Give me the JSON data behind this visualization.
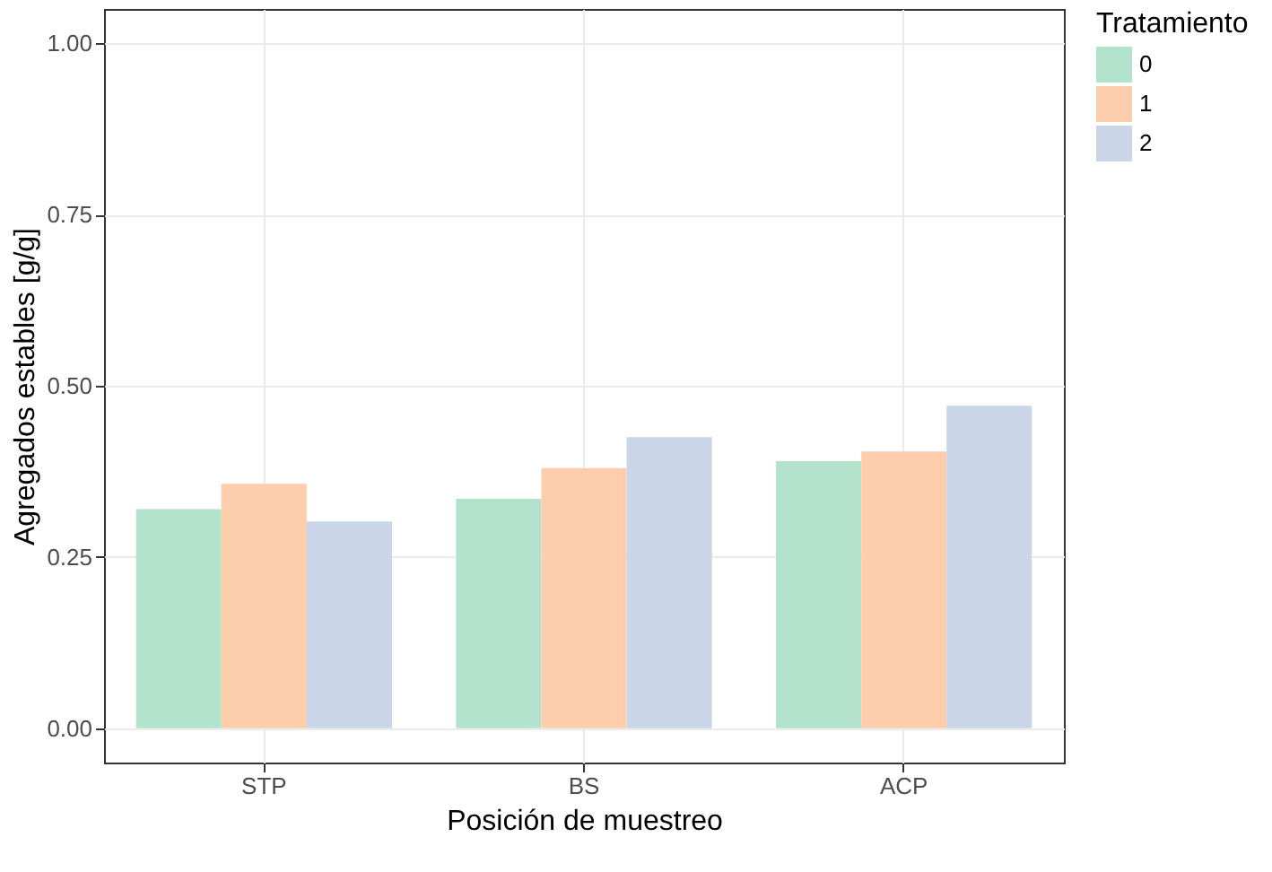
{
  "chart_data": {
    "type": "bar",
    "xlabel": "Posición de muestreo",
    "ylabel": "Agregados estables [g/g]",
    "legend_title": "Tratamiento",
    "categories": [
      "STP",
      "BS",
      "ACP"
    ],
    "series": [
      {
        "name": "0",
        "color": "#b3e2cd",
        "values": [
          0.32,
          0.335,
          0.39
        ]
      },
      {
        "name": "1",
        "color": "#fdcdac",
        "values": [
          0.357,
          0.38,
          0.404
        ]
      },
      {
        "name": "2",
        "color": "#cbd5e8",
        "values": [
          0.302,
          0.425,
          0.471
        ]
      }
    ],
    "ylim": [
      -0.05,
      1.05
    ],
    "yticks": [
      {
        "value": 0,
        "label": "0.00"
      },
      {
        "value": 0.25,
        "label": "0.25"
      },
      {
        "value": 0.5,
        "label": "0.50"
      },
      {
        "value": 0.75,
        "label": "0.75"
      },
      {
        "value": 1,
        "label": "1.00"
      }
    ],
    "grid": true,
    "legend": "right"
  }
}
